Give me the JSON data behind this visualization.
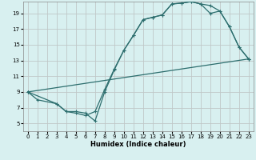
{
  "xlabel": "Humidex (Indice chaleur)",
  "bg_color": "#d8f0f0",
  "grid_color": "#c0c8c8",
  "line_color": "#2d6e6e",
  "xlim": [
    -0.5,
    23.5
  ],
  "ylim": [
    4,
    20.5
  ],
  "xticks": [
    0,
    1,
    2,
    3,
    4,
    5,
    6,
    7,
    8,
    9,
    10,
    11,
    12,
    13,
    14,
    15,
    16,
    17,
    18,
    19,
    20,
    21,
    22,
    23
  ],
  "yticks": [
    5,
    7,
    9,
    11,
    13,
    15,
    17,
    19
  ],
  "line1_x": [
    0,
    1,
    3,
    4,
    5,
    6,
    7,
    8,
    9,
    10,
    11,
    12,
    13,
    14,
    15,
    16,
    17,
    18,
    19,
    20,
    21,
    22,
    23
  ],
  "line1_y": [
    9,
    8,
    7.5,
    6.5,
    6.5,
    6.3,
    5.3,
    9.0,
    11.8,
    14.3,
    16.2,
    18.2,
    18.5,
    18.8,
    20.2,
    20.3,
    20.5,
    20.2,
    20.0,
    19.3,
    17.3,
    14.7,
    13.2
  ],
  "line2_x": [
    0,
    3,
    4,
    5,
    6,
    7,
    8,
    9,
    10,
    11,
    12,
    13,
    14,
    15,
    16,
    17,
    18,
    19,
    20,
    21,
    22,
    23
  ],
  "line2_y": [
    9,
    7.5,
    6.5,
    6.3,
    6.0,
    6.5,
    9.3,
    11.9,
    14.3,
    16.2,
    18.2,
    18.5,
    18.8,
    20.2,
    20.3,
    20.5,
    20.2,
    19.0,
    19.3,
    17.3,
    14.7,
    13.2
  ],
  "line3_x": [
    0,
    23
  ],
  "line3_y": [
    9,
    13.2
  ]
}
